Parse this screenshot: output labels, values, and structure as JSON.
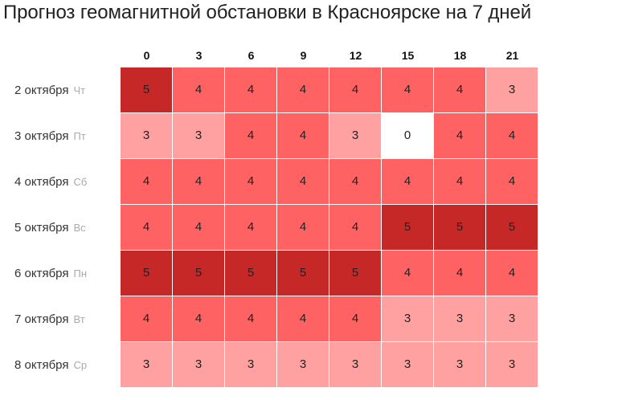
{
  "title": "Прогноз геомагнитной обстановки в Красноярске на 7 дней",
  "colors": {
    "0": "#ffffff",
    "3": "#ffa1a1",
    "4": "#ff6262",
    "5": "#c62828"
  },
  "chart_data": {
    "type": "heatmap",
    "title": "Прогноз геомагнитной обстановки в Красноярске на 7 дней",
    "x": [
      "0",
      "3",
      "6",
      "9",
      "12",
      "15",
      "18",
      "21"
    ],
    "rows": [
      {
        "date": "2 октября",
        "dow": "Чт",
        "values": [
          5,
          4,
          4,
          4,
          4,
          4,
          4,
          3
        ]
      },
      {
        "date": "3 октября",
        "dow": "Пт",
        "values": [
          3,
          3,
          4,
          4,
          3,
          0,
          4,
          4
        ]
      },
      {
        "date": "4 октября",
        "dow": "Сб",
        "values": [
          4,
          4,
          4,
          4,
          4,
          4,
          4,
          4
        ]
      },
      {
        "date": "5 октября",
        "dow": "Вс",
        "values": [
          4,
          4,
          4,
          4,
          4,
          5,
          5,
          5
        ]
      },
      {
        "date": "6 октября",
        "dow": "Пн",
        "values": [
          5,
          5,
          5,
          5,
          5,
          4,
          4,
          4
        ]
      },
      {
        "date": "7 октября",
        "dow": "Вт",
        "values": [
          4,
          4,
          4,
          4,
          4,
          3,
          3,
          3
        ]
      },
      {
        "date": "8 октября",
        "dow": "Ср",
        "values": [
          3,
          3,
          3,
          3,
          3,
          3,
          3,
          3
        ]
      }
    ]
  }
}
